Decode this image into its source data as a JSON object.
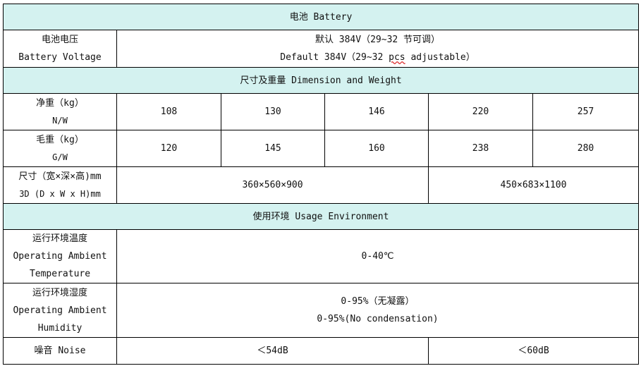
{
  "battery": {
    "title": "电池 Battery",
    "voltage_label_cn": "电池电压",
    "voltage_label_en": "Battery Voltage",
    "voltage_value_cn": "默认 384V（29~32 节可调）",
    "voltage_value_en_pre": "Default 384V（29~32 ",
    "voltage_value_en_pcs": "pcs",
    "voltage_value_en_post": " adjustable）"
  },
  "dimension": {
    "title": "尺寸及重量 Dimension and Weight",
    "nw_label_cn": "净重（kg）",
    "nw_label_en": "N/W",
    "nw": [
      "108",
      "130",
      "146",
      "220",
      "257"
    ],
    "gw_label_cn": "毛重（kg）",
    "gw_label_en": "G/W",
    "gw": [
      "120",
      "145",
      "160",
      "238",
      "280"
    ],
    "size_label_cn": "尺寸（宽×深×高)mm",
    "size_label_en": "3D (D x W x H)mm",
    "size": [
      "360×560×900",
      "450×683×1100"
    ]
  },
  "usage": {
    "title": "使用环境 Usage Environment",
    "temp_label": [
      "运行环境温度",
      "Operating Ambient",
      "Temperature"
    ],
    "temp_value": "0-40℃",
    "hum_label": [
      "运行环境湿度",
      "Operating Ambient",
      "Humidity"
    ],
    "hum_value_cn": "0-95%（无凝露）",
    "hum_value_en": "0-95%(No condensation)",
    "noise_label": "噪音 Noise",
    "noise": [
      "＜54dB",
      "＜60dB"
    ]
  },
  "colors": {
    "section_bg": "#d4f2f0"
  }
}
